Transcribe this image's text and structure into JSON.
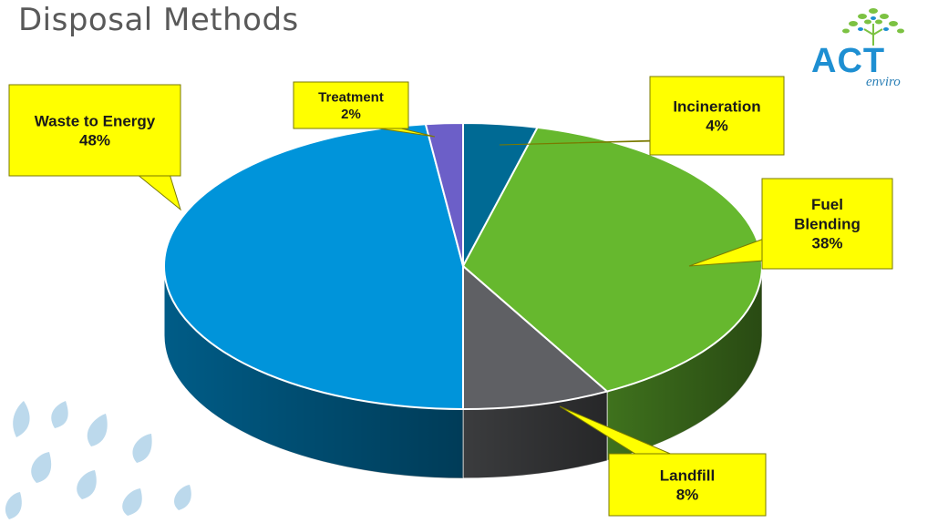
{
  "title": "Disposal Methods",
  "logo": {
    "text": "ACT",
    "subtext": "enviro"
  },
  "colors": {
    "callout_fill": "#ffff00",
    "callout_stroke": "#7a7a00"
  },
  "chart_data": {
    "type": "pie",
    "three_d": true,
    "legend": "none",
    "slices": [
      {
        "label": "Incineration",
        "value": 4,
        "display": "4%",
        "color": "#006a94"
      },
      {
        "label": "Fuel Blending",
        "value": 38,
        "display": "38%",
        "color": "#66b82e"
      },
      {
        "label": "Landfill",
        "value": 8,
        "display": "8%",
        "color": "#5f6064"
      },
      {
        "label": "Waste to Energy",
        "value": 48,
        "display": "48%",
        "color": "#0094da"
      },
      {
        "label": "Treatment",
        "value": 2,
        "display": "2%",
        "color": "#6c5fc8"
      }
    ]
  }
}
